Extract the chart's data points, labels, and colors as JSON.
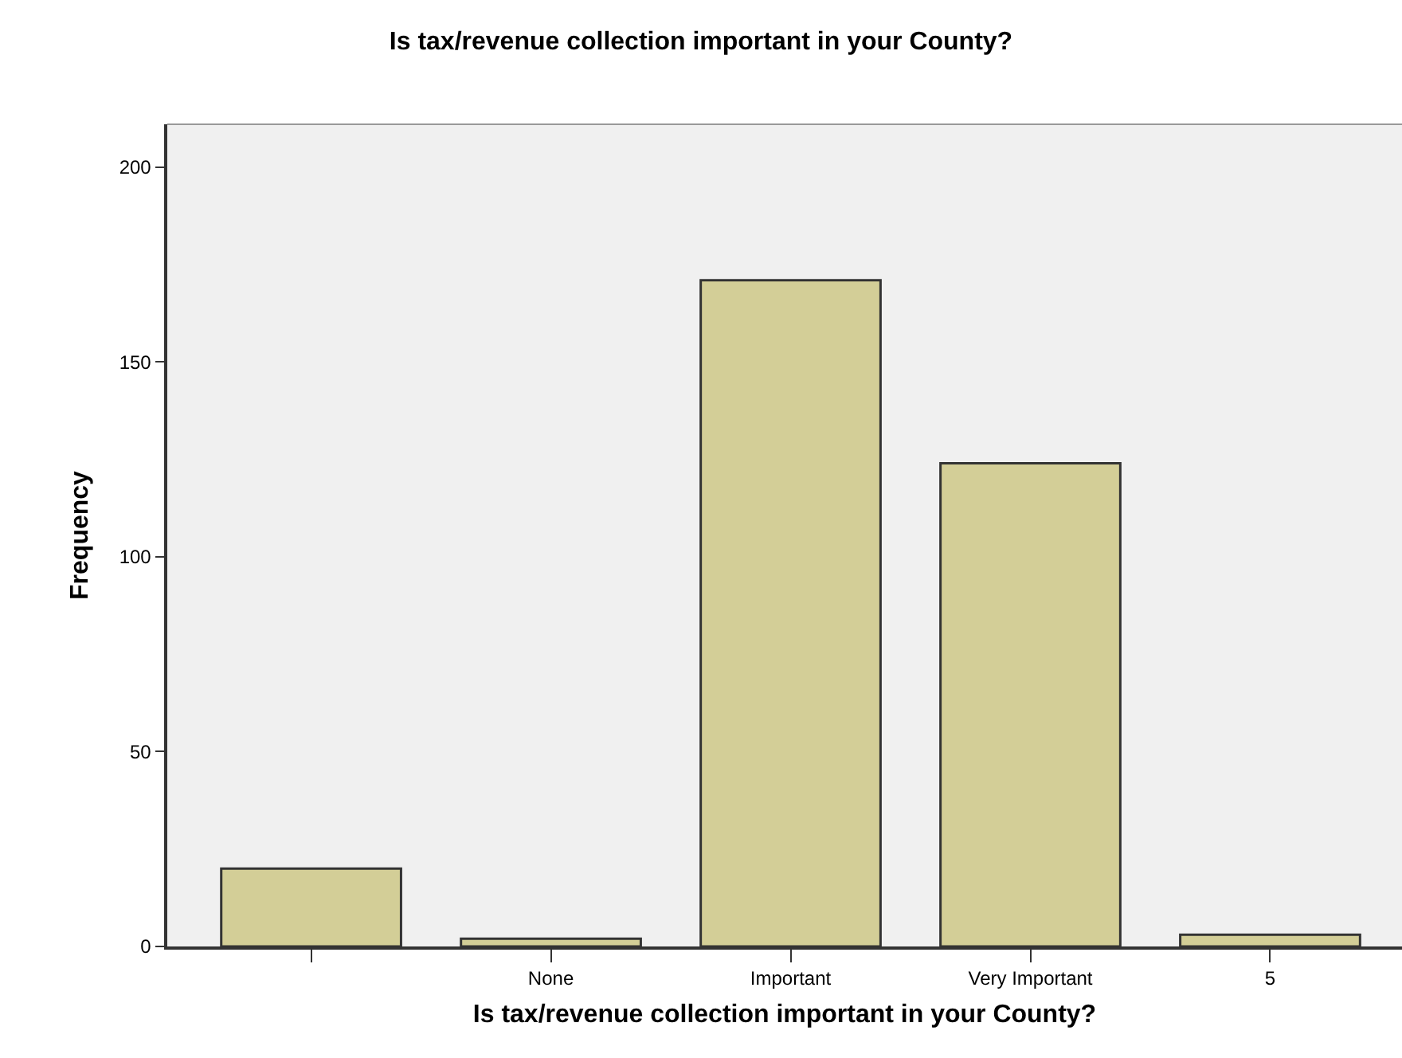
{
  "chart_data": {
    "type": "bar",
    "title": "Is tax/revenue collection important in your County?",
    "xlabel": "Is tax/revenue collection important in your County?",
    "ylabel": "Frequency",
    "categories": [
      null,
      "None",
      "Important",
      "Very Important",
      "5"
    ],
    "values": [
      20,
      2,
      171,
      124,
      3
    ],
    "color": "#d3ce97",
    "ylim": [
      0,
      211
    ],
    "yticks": [
      0,
      50,
      100,
      150,
      200
    ],
    "grid": false
  }
}
